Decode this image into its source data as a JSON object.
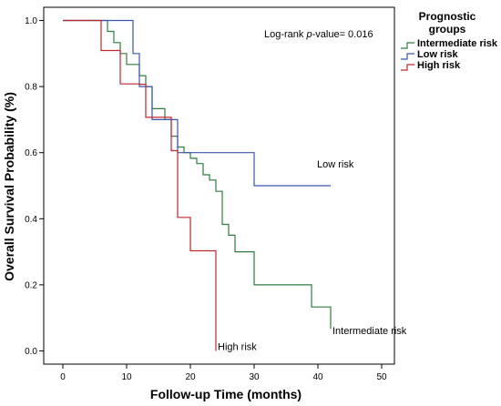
{
  "chart_data": {
    "type": "line",
    "step": true,
    "xlabel": "Follow-up Time (months)",
    "ylabel": "Overall Survival Probability (%)",
    "xlim": [
      -3,
      52
    ],
    "ylim": [
      -0.04,
      1.04
    ],
    "x_ticks": [
      0,
      10,
      20,
      30,
      40,
      50
    ],
    "y_ticks": [
      0.0,
      0.2,
      0.4,
      0.6,
      0.8,
      1.0
    ],
    "x_tick_labels": [
      "0",
      "10",
      "20",
      "30",
      "40",
      "50"
    ],
    "y_tick_labels": [
      "0.0",
      "0.2",
      "0.4",
      "0.6",
      "0.8",
      "1.0"
    ],
    "grid": false,
    "legend_title_line1": "Prognostic",
    "legend_title_line2": "groups",
    "legend_position": "top-right outside",
    "annotation_prefix": "Log-rank ",
    "annotation_italic": "p",
    "annotation_suffix": "-value= 0.016",
    "series": [
      {
        "name": "Intermediate risk",
        "end_label": "Intermediate risk",
        "color": "#2e7d3e",
        "x": [
          0,
          7,
          8,
          9,
          10,
          12,
          13,
          14,
          16,
          17,
          18,
          19,
          20,
          21,
          22,
          23,
          24,
          25,
          26,
          27,
          30,
          39,
          42
        ],
        "y": [
          1.0,
          0.967,
          0.933,
          0.9,
          0.867,
          0.833,
          0.8,
          0.733,
          0.7,
          0.65,
          0.617,
          0.6,
          0.583,
          0.567,
          0.533,
          0.517,
          0.483,
          0.383,
          0.35,
          0.3,
          0.2,
          0.133,
          0.067
        ]
      },
      {
        "name": "Low risk",
        "end_label": "Low risk",
        "color": "#3a55b0",
        "x": [
          0,
          11,
          12,
          14,
          16,
          18,
          19,
          30,
          42
        ],
        "y": [
          1.0,
          0.9,
          0.8,
          0.7,
          0.7,
          0.6,
          0.6,
          0.5,
          0.5
        ]
      },
      {
        "name": "High risk",
        "end_label": "High risk",
        "color": "#c0282d",
        "x": [
          0,
          6,
          9,
          12,
          13,
          17,
          18,
          20,
          24
        ],
        "y": [
          1.0,
          0.909,
          0.808,
          0.807,
          0.707,
          0.606,
          0.404,
          0.303,
          0.202
        ],
        "drop_to": 0.0
      }
    ]
  }
}
